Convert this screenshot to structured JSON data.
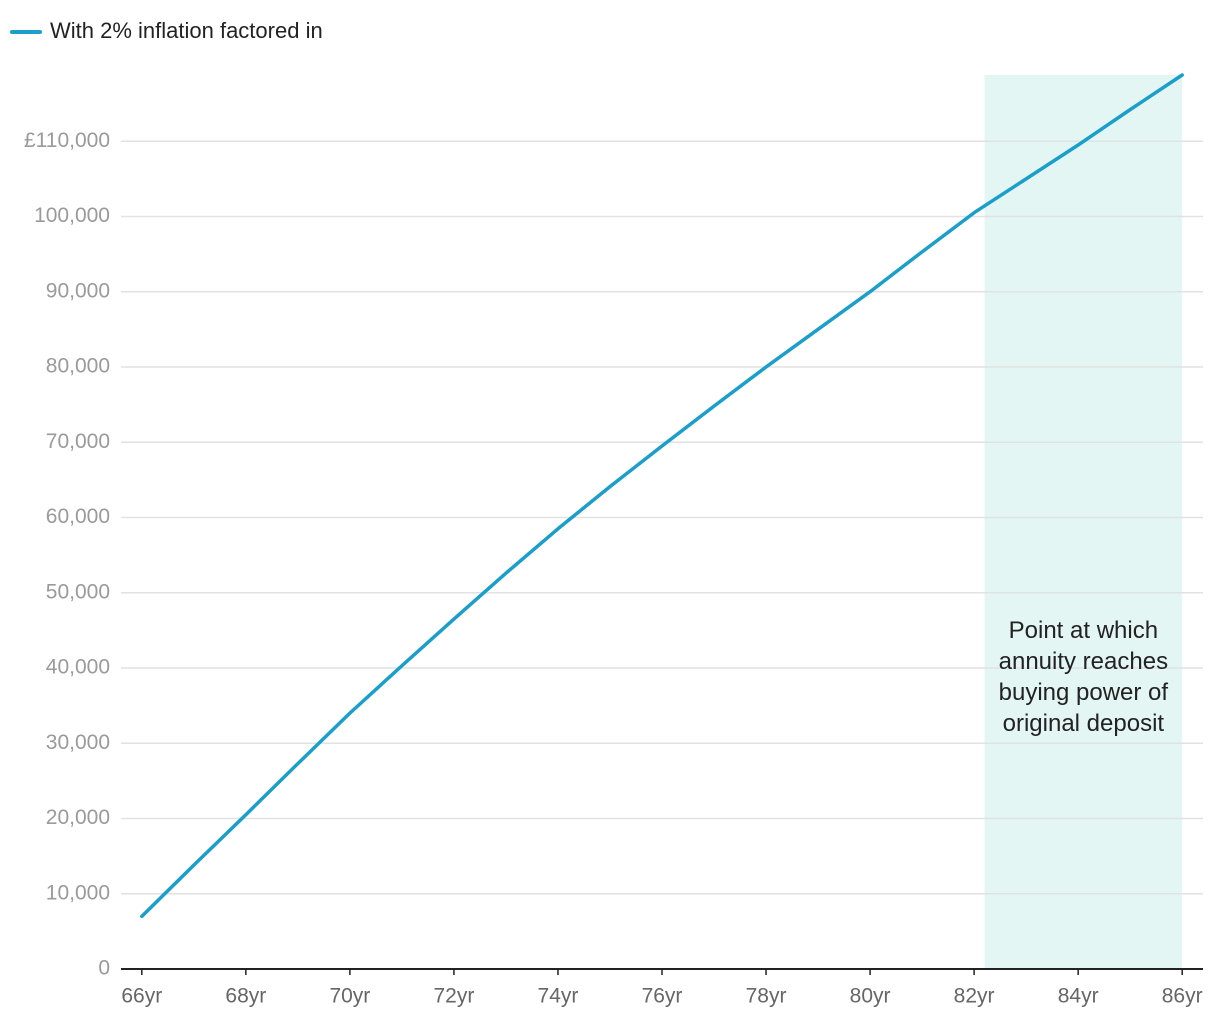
{
  "chart_data": {
    "type": "line",
    "x": [
      66,
      67,
      68,
      69,
      70,
      71,
      72,
      73,
      74,
      75,
      76,
      77,
      78,
      79,
      80,
      81,
      82,
      83,
      84,
      85,
      86
    ],
    "series": [
      {
        "name": "With 2% inflation factored in",
        "color": "#1b9fca",
        "values": [
          7000,
          13800,
          20500,
          27300,
          34000,
          40300,
          46500,
          52600,
          58500,
          64100,
          69500,
          74800,
          80000,
          85000,
          90000,
          95300,
          100500,
          105000,
          109500,
          114200,
          118800
        ]
      }
    ],
    "xlim": [
      65.6,
      86.4
    ],
    "xticks": [
      {
        "value": 66,
        "label": "66yr"
      },
      {
        "value": 68,
        "label": "68yr"
      },
      {
        "value": 70,
        "label": "70yr"
      },
      {
        "value": 72,
        "label": "72yr"
      },
      {
        "value": 74,
        "label": "74yr"
      },
      {
        "value": 76,
        "label": "76yr"
      },
      {
        "value": 78,
        "label": "78yr"
      },
      {
        "value": 80,
        "label": "80yr"
      },
      {
        "value": 82,
        "label": "82yr"
      },
      {
        "value": 84,
        "label": "84yr"
      },
      {
        "value": 86,
        "label": "86yr"
      }
    ],
    "ylim": [
      0,
      118800
    ],
    "yticks": [
      0,
      {
        "value": 10000,
        "label": "10,000"
      },
      {
        "value": 20000,
        "label": "20,000"
      },
      {
        "value": 30000,
        "label": "30,000"
      },
      {
        "value": 40000,
        "label": "40,000"
      },
      {
        "value": 50000,
        "label": "50,000"
      },
      {
        "value": 60000,
        "label": "60,000"
      },
      {
        "value": 70000,
        "label": "70,000"
      },
      {
        "value": 80000,
        "label": "80,000"
      },
      {
        "value": 90000,
        "label": "90,000"
      },
      {
        "value": 100000,
        "label": "100,000"
      },
      {
        "value": 110000,
        "label": "£110,000"
      }
    ],
    "grid": true,
    "legend": "top-left",
    "annotation": {
      "text": "Point at which annuity reaches buying power of original deposit",
      "x_range": [
        82.2,
        86
      ],
      "color": "#e3f6f4"
    }
  }
}
